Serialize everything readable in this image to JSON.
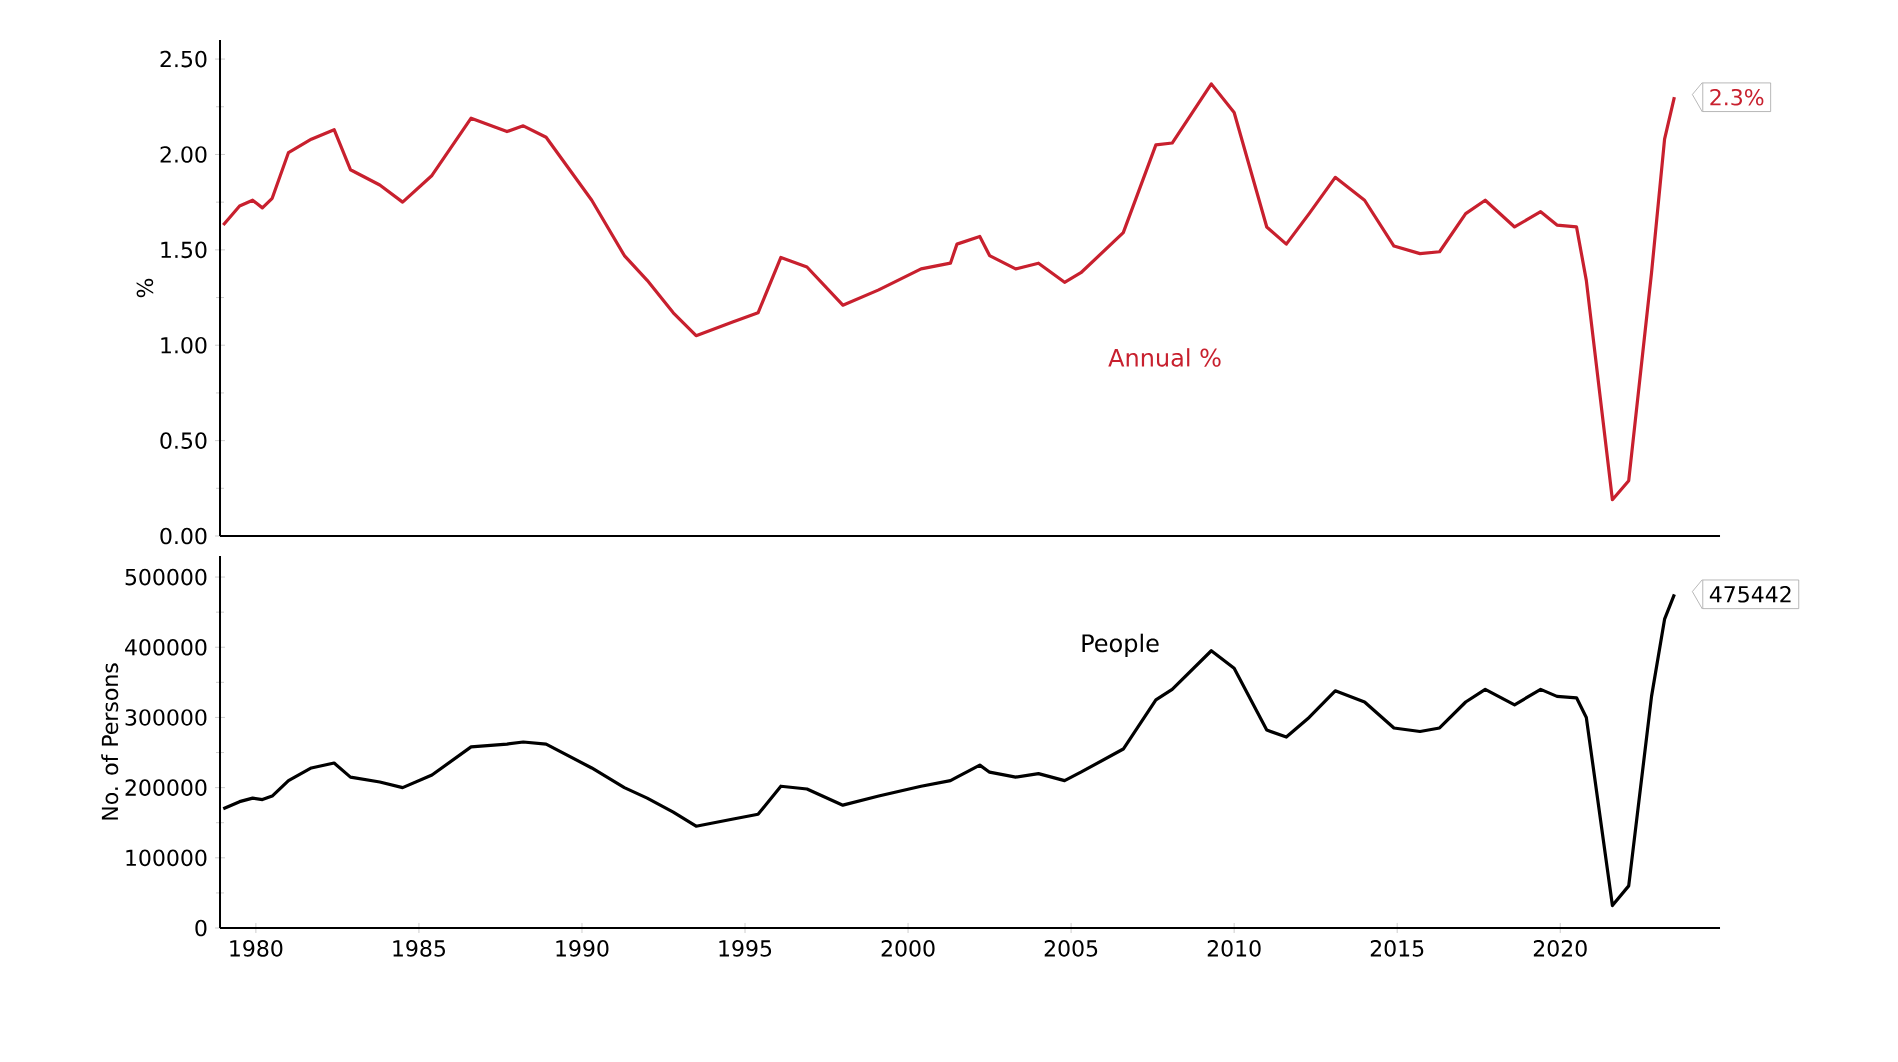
{
  "chart_data": [
    {
      "type": "line",
      "ylabel": "%",
      "tick_labels": "y",
      "x": [
        1979.0,
        1979.5,
        1979.9,
        1980.2,
        1980.5,
        1981.0,
        1981.7,
        1982.4,
        1982.9,
        1983.8,
        1984.5,
        1985.4,
        1986.6,
        1987.7,
        1988.2,
        1988.9,
        1990.3,
        1991.3,
        1992.0,
        1992.8,
        1993.5,
        1994.6,
        1995.4,
        1996.1,
        1996.9,
        1998.0,
        1999.1,
        2000.4,
        2001.3,
        2001.5,
        2002.2,
        2002.5,
        2003.3,
        2004.0,
        2004.8,
        2005.3,
        2006.6,
        2007.6,
        2008.1,
        2009.3,
        2010.0,
        2011.0,
        2011.6,
        2012.3,
        2013.1,
        2014.0,
        2014.9,
        2015.7,
        2016.3,
        2017.1,
        2017.7,
        2018.6,
        2019.4,
        2019.9,
        2020.5,
        2020.8,
        2021.6,
        2022.1,
        2022.8,
        2023.2,
        2023.5
      ],
      "series": [
        {
          "name": "Annual %",
          "color": "#c8202e",
          "values": [
            1.63,
            1.73,
            1.76,
            1.72,
            1.77,
            2.01,
            2.08,
            2.13,
            1.92,
            1.84,
            1.75,
            1.89,
            2.19,
            2.12,
            2.15,
            2.09,
            1.76,
            1.47,
            1.34,
            1.17,
            1.05,
            1.12,
            1.17,
            1.46,
            1.41,
            1.21,
            1.29,
            1.4,
            1.43,
            1.53,
            1.57,
            1.47,
            1.4,
            1.43,
            1.33,
            1.38,
            1.59,
            2.05,
            2.06,
            2.37,
            2.22,
            1.62,
            1.53,
            1.69,
            1.88,
            1.76,
            1.52,
            1.48,
            1.49,
            1.69,
            1.76,
            1.62,
            1.7,
            1.63,
            1.62,
            1.34,
            0.19,
            0.29,
            1.38,
            2.08,
            2.3
          ]
        }
      ],
      "xlim": [
        1978.9,
        2024.9
      ],
      "xticks": [
        1980,
        1985,
        1990,
        1995,
        2000,
        2005,
        2010,
        2015,
        2020
      ],
      "ylim": [
        0,
        2.6
      ],
      "yticks": [
        {
          "value": 0,
          "label": "0.00"
        },
        {
          "value": 0.5,
          "label": "0.50"
        },
        {
          "value": 1,
          "label": "1.00"
        },
        {
          "value": 1.5,
          "label": "1.50"
        },
        {
          "value": 2,
          "label": "2.00"
        },
        {
          "value": 2.5,
          "label": "2.50"
        }
      ],
      "annotations": [
        {
          "text": "2.3%",
          "x": 2023.5,
          "y": 2.3
        }
      ]
    },
    {
      "type": "line",
      "ylabel": "No. of Persons",
      "x": [
        1979.0,
        1979.5,
        1979.9,
        1980.2,
        1980.5,
        1981.0,
        1981.7,
        1982.4,
        1982.9,
        1983.8,
        1984.5,
        1985.4,
        1986.6,
        1987.7,
        1988.2,
        1988.9,
        1990.3,
        1991.3,
        1992.0,
        1992.8,
        1993.5,
        1994.6,
        1995.4,
        1996.1,
        1996.9,
        1998.0,
        1999.1,
        2000.4,
        2001.3,
        2001.5,
        2002.2,
        2002.5,
        2003.3,
        2004.0,
        2004.8,
        2005.3,
        2006.6,
        2007.6,
        2008.1,
        2009.3,
        2010.0,
        2011.0,
        2011.6,
        2012.3,
        2013.1,
        2014.0,
        2014.9,
        2015.7,
        2016.3,
        2017.1,
        2017.7,
        2018.6,
        2019.4,
        2019.9,
        2020.5,
        2020.8,
        2021.6,
        2022.1,
        2022.8,
        2023.2,
        2023.5
      ],
      "series": [
        {
          "name": "People",
          "color": "#000000",
          "values": [
            170000,
            180000,
            185000,
            183000,
            188000,
            210000,
            228000,
            235000,
            215000,
            208000,
            200000,
            218000,
            258000,
            262000,
            265000,
            262000,
            228000,
            200000,
            185000,
            165000,
            145000,
            155000,
            162000,
            202000,
            198000,
            175000,
            188000,
            202000,
            210000,
            215000,
            232000,
            222000,
            215000,
            220000,
            210000,
            222000,
            255000,
            325000,
            340000,
            395000,
            370000,
            282000,
            272000,
            300000,
            338000,
            322000,
            285000,
            280000,
            285000,
            322000,
            340000,
            318000,
            340000,
            330000,
            328000,
            300000,
            32000,
            60000,
            330000,
            440000,
            475442
          ]
        }
      ],
      "xlim": [
        1978.9,
        2024.9
      ],
      "xticks": [
        1980,
        1985,
        1990,
        1995,
        2000,
        2005,
        2010,
        2015,
        2020
      ],
      "ylim": [
        0,
        530000
      ],
      "yticks": [
        0,
        100000,
        200000,
        300000,
        400000,
        500000
      ],
      "annotations": [
        {
          "text": "475442",
          "x": 2023.5,
          "y": 475442
        }
      ]
    }
  ]
}
